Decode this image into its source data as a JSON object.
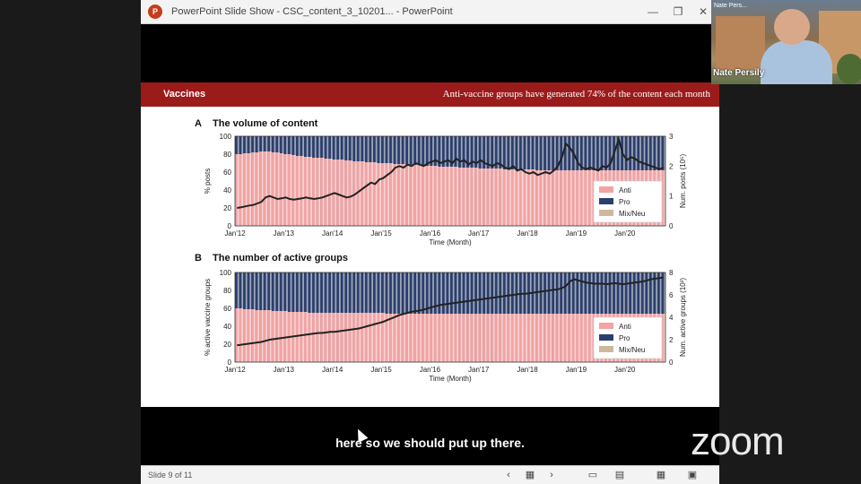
{
  "window": {
    "title": "PowerPoint Slide Show  -  CSC_content_3_10201...  -  PowerPoint",
    "minimize_glyph": "—",
    "restore_glyph": "❐",
    "close_glyph": "✕"
  },
  "slide": {
    "header_left": "Vaccines",
    "header_right": "Anti-vaccine groups have generated 74% of the content each month",
    "panel_a_letter": "A",
    "panel_a_title": "The volume of content",
    "panel_b_letter": "B",
    "panel_b_title": "The number of active groups"
  },
  "chart_data": [
    {
      "type": "area",
      "title": "The volume of content",
      "xlabel": "Time (Month)",
      "ylabel": "% posts",
      "y2label": "Num. posts (10⁵)",
      "ylim": [
        0,
        100
      ],
      "y2lim": [
        0,
        3
      ],
      "yticks": [
        "0",
        "20",
        "40",
        "60",
        "80",
        "100"
      ],
      "y2ticks": [
        "0",
        "1",
        "2",
        "3"
      ],
      "xticks": [
        "Jan'12",
        "Jan'13",
        "Jan'14",
        "Jan'15",
        "Jan'16",
        "Jan'17",
        "Jan'18",
        "Jan'19",
        "Jan'20"
      ],
      "legend": [
        "Anti",
        "Pro",
        "Mix/Neu"
      ],
      "legend_position": "bottom-right",
      "colors": {
        "anti": "#f2a3a3",
        "pro": "#2c3e6b",
        "mix": "#cdb89c",
        "line": "#222222"
      },
      "anti_pct": [
        80,
        80,
        81,
        81,
        82,
        82,
        83,
        83,
        83,
        82,
        82,
        81,
        80,
        80,
        79,
        78,
        78,
        77,
        77,
        76,
        76,
        76,
        75,
        75,
        74,
        74,
        74,
        73,
        73,
        72,
        72,
        72,
        71,
        71,
        71,
        70,
        70,
        70,
        70,
        69,
        69,
        69,
        68,
        68,
        68,
        68,
        67,
        67,
        67,
        67,
        66,
        66,
        66,
        66,
        66,
        65,
        65,
        65,
        65,
        65,
        64,
        64,
        64,
        64,
        64,
        64,
        63,
        63,
        63,
        63,
        63,
        63,
        63,
        63,
        62,
        62,
        62,
        62,
        62,
        62,
        62,
        62,
        62,
        62,
        62,
        62,
        62,
        62,
        62,
        62,
        62,
        62,
        62,
        62,
        62,
        62,
        62,
        62,
        62,
        62,
        62,
        62,
        62,
        62,
        62,
        62
      ],
      "num_posts": [
        0.6,
        0.62,
        0.65,
        0.68,
        0.7,
        0.75,
        0.8,
        0.95,
        1.0,
        0.95,
        0.9,
        0.92,
        0.95,
        0.9,
        0.88,
        0.9,
        0.92,
        0.95,
        0.92,
        0.9,
        0.92,
        0.95,
        1.0,
        1.05,
        1.1,
        1.05,
        1.0,
        0.95,
        0.98,
        1.05,
        1.15,
        1.25,
        1.35,
        1.45,
        1.4,
        1.55,
        1.6,
        1.7,
        1.8,
        1.95,
        2.0,
        1.95,
        2.05,
        2.0,
        2.1,
        2.05,
        2.0,
        2.1,
        2.15,
        2.2,
        2.1,
        2.15,
        2.2,
        2.1,
        2.25,
        2.15,
        2.2,
        2.05,
        2.15,
        2.1,
        2.2,
        2.1,
        2.05,
        2.0,
        2.1,
        2.05,
        1.95,
        1.9,
        2.0,
        1.85,
        1.9,
        1.8,
        1.75,
        1.8,
        1.7,
        1.75,
        1.8,
        1.75,
        1.85,
        2.0,
        2.3,
        2.75,
        2.6,
        2.4,
        2.1,
        1.95,
        1.9,
        1.95,
        1.9,
        1.85,
        2.0,
        1.95,
        2.1,
        2.5,
        2.9,
        2.4,
        2.2,
        2.3,
        2.25,
        2.15,
        2.1,
        2.05,
        2.0,
        1.95,
        1.9,
        1.95
      ]
    },
    {
      "type": "area",
      "title": "The number of active groups",
      "xlabel": "Time (Month)",
      "ylabel": "% active vaccine groups",
      "y2label": "Num. active groups (10³)",
      "ylim": [
        0,
        100
      ],
      "y2lim": [
        0,
        8
      ],
      "yticks": [
        "0",
        "20",
        "40",
        "60",
        "80",
        "100"
      ],
      "y2ticks": [
        "0",
        "2",
        "4",
        "6",
        "8"
      ],
      "xticks": [
        "Jan'12",
        "Jan'13",
        "Jan'14",
        "Jan'15",
        "Jan'16",
        "Jan'17",
        "Jan'18",
        "Jan'19",
        "Jan'20"
      ],
      "legend": [
        "Anti",
        "Pro",
        "Mix/Neu"
      ],
      "legend_position": "bottom-right",
      "colors": {
        "anti": "#f2a3a3",
        "pro": "#2c3e6b",
        "mix": "#cdb89c",
        "line": "#222222"
      },
      "anti_pct": [
        60,
        60,
        59,
        59,
        59,
        58,
        58,
        58,
        58,
        57,
        57,
        57,
        57,
        56,
        56,
        56,
        56,
        56,
        55,
        55,
        55,
        55,
        55,
        55,
        55,
        55,
        55,
        55,
        55,
        55,
        55,
        55,
        55,
        55,
        55,
        55,
        55,
        54,
        54,
        54,
        54,
        54,
        54,
        54,
        54,
        54,
        54,
        54,
        54,
        54,
        54,
        54,
        54,
        54,
        54,
        54,
        54,
        54,
        54,
        54,
        54,
        54,
        54,
        54,
        54,
        54,
        54,
        54,
        54,
        54,
        54,
        54,
        54,
        54,
        54,
        54,
        54,
        54,
        54,
        54,
        54,
        54,
        54,
        54,
        54,
        54,
        54,
        54,
        54,
        54,
        54,
        54,
        54,
        54,
        54,
        54,
        54,
        54,
        54,
        54,
        54,
        54,
        54,
        54,
        54,
        54
      ],
      "num_groups": [
        1.5,
        1.55,
        1.6,
        1.65,
        1.7,
        1.75,
        1.8,
        1.9,
        2.0,
        2.05,
        2.1,
        2.15,
        2.2,
        2.25,
        2.3,
        2.35,
        2.4,
        2.45,
        2.5,
        2.55,
        2.6,
        2.6,
        2.65,
        2.7,
        2.7,
        2.75,
        2.8,
        2.85,
        2.9,
        2.95,
        3.0,
        3.1,
        3.2,
        3.3,
        3.4,
        3.5,
        3.6,
        3.75,
        3.9,
        4.05,
        4.2,
        4.3,
        4.4,
        4.5,
        4.55,
        4.6,
        4.7,
        4.8,
        4.9,
        5.0,
        5.1,
        5.15,
        5.2,
        5.25,
        5.3,
        5.35,
        5.4,
        5.45,
        5.5,
        5.55,
        5.6,
        5.65,
        5.7,
        5.75,
        5.8,
        5.85,
        5.9,
        5.95,
        6.0,
        6.05,
        6.1,
        6.1,
        6.15,
        6.2,
        6.25,
        6.3,
        6.35,
        6.4,
        6.45,
        6.5,
        6.6,
        6.8,
        7.2,
        7.4,
        7.3,
        7.2,
        7.1,
        7.05,
        7.0,
        7.0,
        7.0,
        6.95,
        7.0,
        7.05,
        7.0,
        6.95,
        7.0,
        7.05,
        7.1,
        7.15,
        7.2,
        7.3,
        7.4,
        7.45,
        7.5,
        7.55
      ]
    }
  ],
  "caption": "here so we should put up there.",
  "status": {
    "slide_counter": "Slide 9 of 11"
  },
  "webcam": {
    "participant_name": "Nate Persily",
    "tag": "Nate Pers..."
  },
  "zoom_logo": "zoom"
}
